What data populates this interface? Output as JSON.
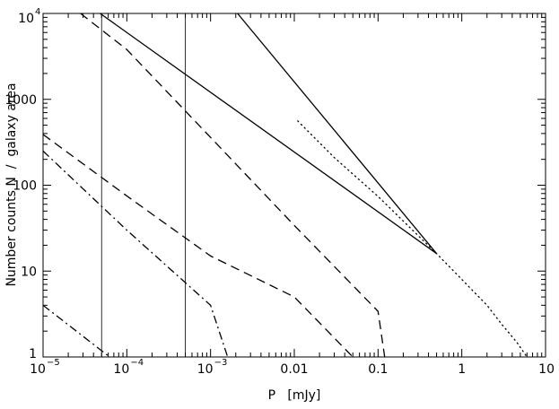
{
  "chart_data": {
    "type": "line",
    "xlabel": "P   [mJy]",
    "ylabel": "Number counts N  /  galaxy area",
    "x_scale": "log",
    "y_scale": "log",
    "xlim": [
      1e-05,
      10
    ],
    "ylim": [
      1,
      10000
    ],
    "x_ticks": [
      {
        "value": 1e-05,
        "base": "10",
        "exp": "−5"
      },
      {
        "value": 0.0001,
        "base": "10",
        "exp": "−4"
      },
      {
        "value": 0.001,
        "base": "10",
        "exp": "−3"
      },
      {
        "value": 0.01,
        "label": "0.01"
      },
      {
        "value": 0.1,
        "label": "0.1"
      },
      {
        "value": 1,
        "label": "1"
      },
      {
        "value": 10,
        "label": "10"
      }
    ],
    "y_ticks": [
      {
        "value": 1,
        "label": "1"
      },
      {
        "value": 10,
        "label": "10"
      },
      {
        "value": 100,
        "label": "100"
      },
      {
        "value": 1000,
        "label": "1000"
      },
      {
        "value": 10000,
        "base": "10",
        "exp": "4"
      }
    ],
    "vlines": [
      5e-05,
      0.0005
    ],
    "series": [
      {
        "style": "solid",
        "points": [
          [
            0.5,
            16
          ],
          [
            4.8e-05,
            10000
          ]
        ]
      },
      {
        "style": "solid",
        "points": [
          [
            0.5,
            16
          ],
          [
            0.0021,
            10000
          ]
        ]
      },
      {
        "style": "dotted",
        "points": [
          [
            0.011,
            560
          ],
          [
            0.03,
            210
          ],
          [
            0.1,
            74
          ],
          [
            0.3,
            26
          ],
          [
            0.5,
            16
          ],
          [
            1,
            8
          ],
          [
            2,
            4
          ],
          [
            3,
            2.4
          ],
          [
            4.5,
            1.5
          ],
          [
            6,
            1
          ]
        ]
      },
      {
        "style": "dashed",
        "points": [
          [
            2.8e-05,
            10000
          ],
          [
            0.0001,
            3800
          ],
          [
            0.001,
            360
          ],
          [
            0.01,
            34
          ],
          [
            0.1,
            3.4
          ],
          [
            0.12,
            1
          ]
        ]
      },
      {
        "style": "dashed",
        "points": [
          [
            1e-05,
            390
          ],
          [
            0.0001,
            75
          ],
          [
            0.001,
            15
          ],
          [
            0.01,
            5
          ],
          [
            0.05,
            1
          ]
        ]
      },
      {
        "style": "dashdot",
        "points": [
          [
            1e-05,
            250
          ],
          [
            0.0001,
            30
          ],
          [
            0.001,
            4
          ],
          [
            0.0016,
            1
          ]
        ]
      },
      {
        "style": "dashdot",
        "points": [
          [
            1e-05,
            4
          ],
          [
            0.0001,
            0.7
          ]
        ]
      }
    ]
  }
}
